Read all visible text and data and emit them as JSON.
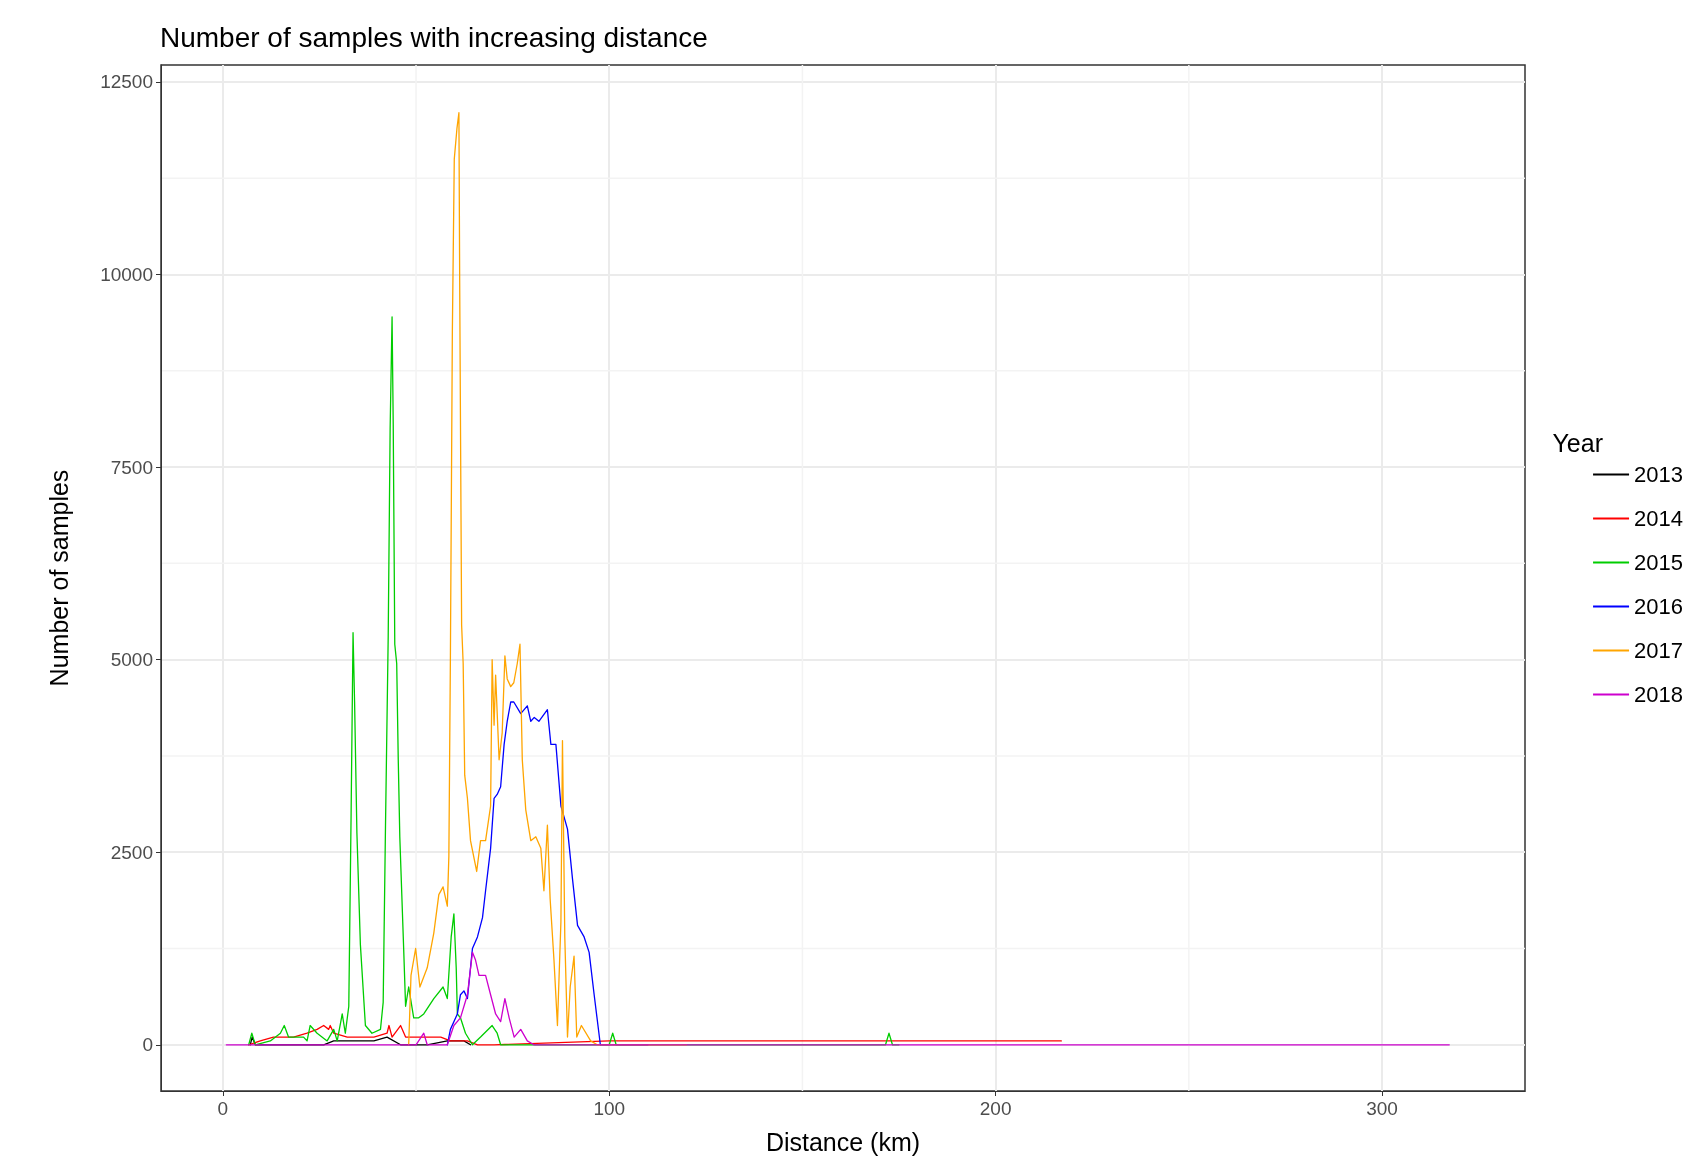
{
  "chart_data": {
    "type": "line",
    "title": "Number of samples with increasing distance",
    "xlabel": "Distance (km)",
    "ylabel": "Number of samples",
    "legend_title": "Year",
    "legend": "right",
    "grid": true,
    "marker": "none",
    "line_style": "solid",
    "xlim": [
      -16,
      337
    ],
    "xticks": [
      0,
      100,
      200,
      300
    ],
    "ylim": [
      -600,
      12720
    ],
    "yticks": [
      0,
      2500,
      5000,
      7500,
      10000,
      12500
    ],
    "series": [
      {
        "name": "2013",
        "color": "#000000",
        "x": [
          7.1,
          7.6,
          8.4,
          26.1,
          28.7,
          33.9,
          39.1,
          42.5,
          46,
          52.9,
          58.1,
          62.4,
          64.1
        ],
        "values": [
          0,
          100,
          0,
          0,
          50,
          50,
          50,
          100,
          0,
          0,
          50,
          50,
          0
        ]
      },
      {
        "name": "2014",
        "color": "#ff0000",
        "x": [
          6.7,
          9.7,
          13.1,
          18.3,
          21.8,
          24.4,
          26.1,
          27.4,
          27.8,
          28.7,
          32.2,
          35.6,
          39.1,
          42.5,
          43,
          43.8,
          46,
          47.3,
          50.3,
          52.9,
          56.4,
          58.9,
          61.5,
          63.3,
          65.9,
          70.2,
          100,
          150,
          200,
          217
        ],
        "values": [
          0,
          50,
          100,
          100,
          150,
          200,
          250,
          200,
          250,
          150,
          100,
          100,
          100,
          150,
          250,
          100,
          250,
          100,
          100,
          100,
          100,
          50,
          50,
          50,
          0,
          0,
          50,
          50,
          50,
          50
        ]
      },
      {
        "name": "2015",
        "color": "#00cd00",
        "x": [
          6.7,
          7.5,
          8.4,
          12.3,
          14.9,
          15.9,
          17,
          20.9,
          21.8,
          22.6,
          24.4,
          27,
          28.7,
          29.6,
          30.9,
          31.7,
          32.6,
          33.2,
          33.7,
          34.1,
          34.7,
          35.6,
          36.9,
          38.6,
          40.8,
          41.5,
          42.1,
          42.8,
          43.3,
          43.8,
          44.1,
          44.5,
          45,
          45.4,
          45.8,
          46.8,
          47.3,
          48.1,
          49.4,
          50.7,
          52,
          54.6,
          57,
          58.1,
          59.1,
          59.8,
          60.4,
          60.7,
          61.5,
          62.8,
          64.6,
          66.7,
          69.7,
          71,
          71.9,
          100,
          100.9,
          101.8,
          171.5,
          172.4,
          173.3,
          175
        ],
        "values": [
          0,
          150,
          0,
          50,
          150,
          250,
          100,
          100,
          50,
          250,
          150,
          50,
          200,
          50,
          400,
          150,
          500,
          3000,
          5350,
          4450,
          2750,
          1300,
          250,
          150,
          200,
          550,
          2850,
          5300,
          8000,
          9450,
          8050,
          5200,
          4950,
          3700,
          2700,
          1250,
          500,
          750,
          350,
          350,
          400,
          600,
          750,
          600,
          1400,
          1700,
          1000,
          400,
          350,
          150,
          0,
          100,
          250,
          150,
          0,
          0,
          150,
          0,
          0,
          150,
          0,
          0
        ]
      },
      {
        "name": "2016",
        "color": "#0000ff",
        "x": [
          58.1,
          58.9,
          60.7,
          61.5,
          62.4,
          63.3,
          64.6,
          65.9,
          67.2,
          68,
          69.3,
          70.2,
          71,
          71.9,
          72.8,
          73.6,
          74.5,
          75.3,
          77.1,
          78.8,
          79.7,
          80.6,
          81.8,
          84,
          84.9,
          86.2,
          87.5,
          89.2,
          90.5,
          91.8,
          93.5,
          94.8,
          96.1,
          97.7,
          110
        ],
        "values": [
          0,
          200,
          400,
          650,
          700,
          600,
          1250,
          1400,
          1650,
          2000,
          2550,
          3200,
          3250,
          3350,
          3900,
          4200,
          4450,
          4450,
          4300,
          4400,
          4200,
          4250,
          4200,
          4350,
          3900,
          3900,
          3100,
          2800,
          2150,
          1550,
          1400,
          1200,
          650,
          0,
          0
        ]
      },
      {
        "name": "2017",
        "color": "#ffa500",
        "x": [
          48.1,
          48.7,
          49.9,
          51,
          52.9,
          54.6,
          55.9,
          57,
          58.1,
          58.5,
          58.9,
          59.4,
          59.9,
          60.6,
          61.1,
          61.3,
          61.8,
          62.2,
          62.6,
          63.3,
          64.1,
          65.7,
          66.7,
          68,
          69.3,
          69.7,
          70.2,
          70.6,
          71.5,
          72.3,
          73,
          73.6,
          74.5,
          75.3,
          76.2,
          76.9,
          77.5,
          78.4,
          79.7,
          81,
          82.3,
          83.1,
          84,
          84.7,
          85.7,
          86.6,
          87.5,
          87.9,
          88.5,
          89.2,
          89.9,
          90.9,
          91.6,
          92.8,
          95.2,
          96.9,
          120
        ],
        "values": [
          0,
          900,
          1250,
          750,
          1000,
          1450,
          1950,
          2050,
          1800,
          2450,
          5050,
          9250,
          11500,
          11900,
          12100,
          9900,
          5450,
          4950,
          3500,
          3200,
          2650,
          2250,
          2650,
          2650,
          3100,
          5000,
          4150,
          4800,
          3700,
          4050,
          5050,
          4750,
          4650,
          4700,
          4950,
          5200,
          3700,
          3050,
          2650,
          2700,
          2550,
          2000,
          2850,
          1900,
          1100,
          250,
          1600,
          3950,
          1400,
          100,
          750,
          1150,
          100,
          250,
          50,
          0,
          0
        ]
      },
      {
        "name": "2018",
        "color": "#cd00cd",
        "x": [
          0.9,
          50,
          52,
          52.9,
          58.1,
          59.8,
          61.5,
          63.3,
          64.6,
          65.4,
          66.3,
          68,
          69.3,
          70.6,
          71.9,
          73,
          74.1,
          75.4,
          77.1,
          78.8,
          80.5,
          317.4
        ],
        "values": [
          0,
          0,
          150,
          0,
          0,
          250,
          350,
          650,
          1200,
          1100,
          900,
          900,
          650,
          400,
          300,
          600,
          350,
          100,
          200,
          50,
          0,
          0
        ]
      }
    ]
  }
}
